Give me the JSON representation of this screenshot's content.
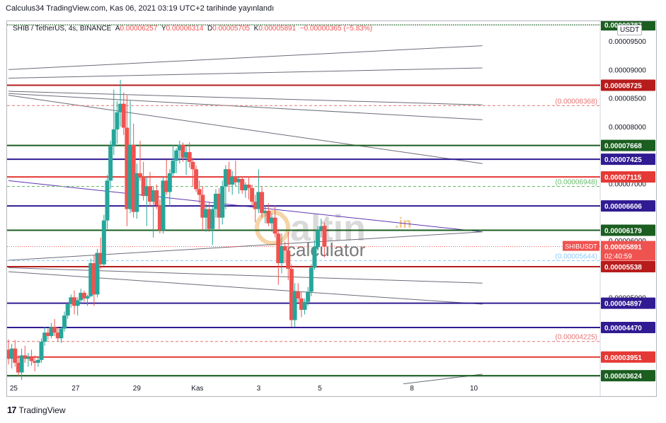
{
  "header": {
    "text": "Calculus34 TradingView.com, Kas 06, 2021 03:19 UTC+2 tarihinde yayınlandı"
  },
  "legend": {
    "symbol": "SHIB / TetherUS, 4s, BINANCE",
    "open_label": "A",
    "open": "0.00006257",
    "high_label": "Y",
    "high": "0.00006314",
    "low_label": "D",
    "low": "0.00005705",
    "close_label": "K",
    "close": "0.00005891",
    "change": "−0.00000365 (−5.83%)"
  },
  "currency_button": "USDT",
  "footer": {
    "brand": "TradingView"
  },
  "watermark": {
    "brand": "altin",
    "suffix": ".in",
    "word": "calculator"
  },
  "colors": {
    "up": "#26a69a",
    "down": "#ef5350",
    "green_line": "#1b5e20",
    "red_line": "#c62828",
    "purple_line": "#311b92",
    "grey_line": "#6a6d78"
  },
  "chart_data": {
    "type": "candlestick",
    "title": "SHIB / TetherUS, 4s, BINANCE",
    "y_axis": {
      "min": 3.6e-05,
      "max": 9.85e-05,
      "ticks": [
        "0.00009500",
        "0.00009000",
        "0.00008500",
        "0.00008000",
        "0.00007000",
        "0.00006000",
        "0.00005000"
      ]
    },
    "x_axis": {
      "ticks": [
        {
          "label": "25",
          "t": 0.8
        },
        {
          "label": "27",
          "t": 10.2
        },
        {
          "label": "29",
          "t": 19.5
        },
        {
          "label": "Kas",
          "t": 28.7
        },
        {
          "label": "3",
          "t": 38.0
        },
        {
          "label": "5",
          "t": 47.3
        },
        {
          "label": "8",
          "t": 61.3
        },
        {
          "label": "10",
          "t": 70.7
        }
      ]
    },
    "last_price": {
      "symbol": "SHIBUSDT",
      "value": "0.00005891",
      "countdown": "02:40:59"
    },
    "levels": [
      {
        "value": 9.787e-05,
        "label": "0.00009787",
        "style": "dotted-dark",
        "color": "#1b5e20",
        "box": "green"
      },
      {
        "value": 8.725e-05,
        "label": "0.00008725",
        "style": "solid",
        "color": "#b71c1c",
        "box": "darkred"
      },
      {
        "value": 8.368e-05,
        "label": "(0.00008368)",
        "style": "dashed",
        "color": "#e57373",
        "box": "none"
      },
      {
        "value": 7.668e-05,
        "label": "0.00007668",
        "style": "solid",
        "color": "#1b5e20",
        "box": "green"
      },
      {
        "value": 7.425e-05,
        "label": "0.00007425",
        "style": "solid",
        "color": "#311b92",
        "box": "purple"
      },
      {
        "value": 7.115e-05,
        "label": "0.00007115",
        "style": "solid",
        "color": "#e53935",
        "box": "red"
      },
      {
        "value": 6.948e-05,
        "label": "(0.00006948)",
        "style": "dashed",
        "color": "#66bb6a",
        "box": "none"
      },
      {
        "value": 6.606e-05,
        "label": "0.00006606",
        "style": "solid",
        "color": "#311b92",
        "box": "purple"
      },
      {
        "value": 6.179e-05,
        "label": "0.00006179",
        "style": "solid",
        "color": "#1b5e20",
        "box": "green"
      },
      {
        "value": 5.644e-05,
        "label": "(0.00005644)",
        "style": "dashed",
        "color": "#90caf9",
        "box": "none"
      },
      {
        "value": 5.538e-05,
        "label": "0.00005538",
        "style": "solid",
        "color": "#b71c1c",
        "box": "darkred"
      },
      {
        "value": 4.897e-05,
        "label": "0.00004897",
        "style": "solid",
        "color": "#311b92",
        "box": "purple"
      },
      {
        "value": 4.47e-05,
        "label": "0.00004470",
        "style": "solid",
        "color": "#311b92",
        "box": "purple"
      },
      {
        "value": 4.225e-05,
        "label": "(0.00004225)",
        "style": "dashed",
        "color": "#e57373",
        "box": "none"
      },
      {
        "value": 3.951e-05,
        "label": "0.00003951",
        "style": "solid",
        "color": "#e53935",
        "box": "red"
      },
      {
        "value": 3.624e-05,
        "label": "0.00003624",
        "style": "solid",
        "color": "#1b5e20",
        "box": "green"
      }
    ],
    "trendlines": [
      {
        "t1": 0,
        "v1": 9e-05,
        "t2": 72,
        "v2": 9.42e-05,
        "color": "#6a6d78"
      },
      {
        "t1": 0,
        "v1": 8.85e-05,
        "t2": 72,
        "v2": 9.03e-05,
        "color": "#6a6d78"
      },
      {
        "t1": 0,
        "v1": 8.62e-05,
        "t2": 72,
        "v2": 8.38e-05,
        "color": "#6a6d78"
      },
      {
        "t1": 0,
        "v1": 8.58e-05,
        "t2": 72,
        "v2": 8.12e-05,
        "color": "#6a6d78"
      },
      {
        "t1": 0,
        "v1": 8.55e-05,
        "t2": 72,
        "v2": 7.35e-05,
        "color": "#6a6d78"
      },
      {
        "t1": 0,
        "v1": 7.05e-05,
        "t2": 72,
        "v2": 6.15e-05,
        "color": "#5e35b1"
      },
      {
        "t1": 0,
        "v1": 5.65e-05,
        "t2": 72,
        "v2": 6.15e-05,
        "color": "#6a6d78"
      },
      {
        "t1": 0,
        "v1": 5.52e-05,
        "t2": 72,
        "v2": 5.25e-05,
        "color": "#6a6d78"
      },
      {
        "t1": 0,
        "v1": 5.45e-05,
        "t2": 72,
        "v2": 4.88e-05,
        "color": "#6a6d78"
      },
      {
        "t1": 60,
        "v1": 3.48e-05,
        "t2": 72,
        "v2": 3.65e-05,
        "color": "#6a6d78"
      }
    ],
    "candles": [
      [
        0.0,
        4.08e-05,
        4.26e-05,
        3.82e-05,
        3.92e-05
      ],
      [
        0.5,
        3.92e-05,
        4.18e-05,
        3.75e-05,
        4.1e-05
      ],
      [
        1.0,
        4.1e-05,
        4.25e-05,
        3.78e-05,
        3.85e-05
      ],
      [
        1.5,
        3.85e-05,
        3.98e-05,
        3.62e-05,
        3.68e-05
      ],
      [
        2.0,
        3.68e-05,
        4.1e-05,
        3.55e-05,
        3.98e-05
      ],
      [
        2.5,
        3.98e-05,
        4.15e-05,
        3.85e-05,
        3.92e-05
      ],
      [
        3.0,
        3.92e-05,
        4.02e-05,
        3.78e-05,
        3.95e-05
      ],
      [
        3.5,
        3.95e-05,
        4.08e-05,
        3.8e-05,
        3.88e-05
      ],
      [
        4.0,
        3.88e-05,
        3.98e-05,
        3.7e-05,
        3.85e-05
      ],
      [
        4.5,
        3.85e-05,
        3.95e-05,
        3.78e-05,
        3.9e-05
      ],
      [
        5.0,
        3.9e-05,
        4.28e-05,
        3.85e-05,
        4.22e-05
      ],
      [
        5.5,
        4.22e-05,
        4.48e-05,
        4.15e-05,
        4.38e-05
      ],
      [
        6.0,
        4.38e-05,
        4.45e-05,
        4.25e-05,
        4.32e-05
      ],
      [
        6.5,
        4.32e-05,
        4.55e-05,
        4.28e-05,
        4.48e-05
      ],
      [
        7.0,
        4.48e-05,
        4.62e-05,
        4.32e-05,
        4.38e-05
      ],
      [
        7.5,
        4.38e-05,
        4.48e-05,
        4.22e-05,
        4.28e-05
      ],
      [
        8.0,
        4.28e-05,
        4.48e-05,
        4.2e-05,
        4.45e-05
      ],
      [
        8.5,
        4.45e-05,
        4.75e-05,
        4.4e-05,
        4.68e-05
      ],
      [
        9.0,
        4.68e-05,
        4.92e-05,
        4.62e-05,
        4.88e-05
      ],
      [
        9.5,
        4.88e-05,
        5.05e-05,
        4.82e-05,
        5e-05
      ],
      [
        10.0,
        5e-05,
        5.12e-05,
        4.7e-05,
        4.85e-05
      ],
      [
        10.5,
        4.85e-05,
        5e-05,
        4.68e-05,
        4.95e-05
      ],
      [
        11.0,
        4.95e-05,
        5.15e-05,
        4.88e-05,
        5.08e-05
      ],
      [
        11.5,
        5.08e-05,
        5.12e-05,
        4.92e-05,
        4.98e-05
      ],
      [
        12.0,
        4.98e-05,
        5.05e-05,
        4.85e-05,
        5.02e-05
      ],
      [
        12.5,
        5.02e-05,
        5.68e-05,
        5e-05,
        5.6e-05
      ],
      [
        13.0,
        5.6e-05,
        5.75e-05,
        4.85e-05,
        5.05e-05
      ],
      [
        13.5,
        5.05e-05,
        5.85e-05,
        5e-05,
        5.78e-05
      ],
      [
        14.0,
        5.78e-05,
        6.05e-05,
        5.5e-05,
        5.58e-05
      ],
      [
        14.5,
        5.58e-05,
        6.45e-05,
        5.55e-05,
        6.35e-05
      ],
      [
        15.0,
        6.35e-05,
        7.15e-05,
        6.2e-05,
        7.05e-05
      ],
      [
        15.5,
        7.05e-05,
        7.75e-05,
        6.9e-05,
        7.65e-05
      ],
      [
        16.0,
        7.65e-05,
        8.65e-05,
        7.5e-05,
        7.95e-05
      ],
      [
        16.5,
        7.95e-05,
        8.45e-05,
        7.7e-05,
        8.25e-05
      ],
      [
        17.0,
        8.25e-05,
        8.82e-05,
        8e-05,
        8.4e-05
      ],
      [
        17.5,
        8.4e-05,
        8.6e-05,
        7.85e-05,
        7.98e-05
      ],
      [
        18.0,
        7.98e-05,
        8.55e-05,
        6.25e-05,
        6.55e-05
      ],
      [
        18.5,
        6.55e-05,
        8.45e-05,
        6.48e-05,
        7.68e-05
      ],
      [
        19.0,
        7.68e-05,
        8.05e-05,
        6.4e-05,
        6.5e-05
      ],
      [
        19.5,
        6.5e-05,
        7.35e-05,
        6.38e-05,
        7.18e-05
      ],
      [
        20.0,
        7.18e-05,
        7.75e-05,
        7.05e-05,
        7.12e-05
      ],
      [
        20.5,
        7.12e-05,
        7.38e-05,
        6.7e-05,
        6.78e-05
      ],
      [
        21.0,
        6.78e-05,
        7.12e-05,
        6.25e-05,
        6.95e-05
      ],
      [
        21.5,
        6.95e-05,
        7.2e-05,
        6.6e-05,
        6.68e-05
      ],
      [
        22.0,
        6.68e-05,
        6.95e-05,
        6.05e-05,
        6.88e-05
      ],
      [
        22.5,
        6.88e-05,
        6.98e-05,
        6.55e-05,
        6.62e-05
      ],
      [
        23.0,
        6.62e-05,
        6.72e-05,
        6.12e-05,
        6.18e-05
      ],
      [
        23.5,
        6.18e-05,
        7.12e-05,
        6.12e-05,
        7.05e-05
      ],
      [
        24.0,
        7.05e-05,
        7.42e-05,
        6.8e-05,
        6.85e-05
      ],
      [
        24.5,
        6.85e-05,
        7.25e-05,
        6.6e-05,
        7.18e-05
      ],
      [
        25.0,
        7.18e-05,
        7.68e-05,
        7.12e-05,
        7.4e-05
      ],
      [
        25.5,
        7.4e-05,
        7.62e-05,
        7.18e-05,
        7.58e-05
      ],
      [
        26.0,
        7.58e-05,
        7.75e-05,
        7.35e-05,
        7.68e-05
      ],
      [
        26.5,
        7.68e-05,
        7.72e-05,
        7.38e-05,
        7.45e-05
      ],
      [
        27.0,
        7.45e-05,
        7.65e-05,
        7.15e-05,
        7.55e-05
      ],
      [
        27.5,
        7.55e-05,
        7.72e-05,
        7.28e-05,
        7.38e-05
      ],
      [
        28.0,
        7.38e-05,
        7.45e-05,
        6.95e-05,
        7.25e-05
      ],
      [
        28.5,
        7.25e-05,
        7.32e-05,
        6.85e-05,
        6.9e-05
      ],
      [
        29.0,
        6.9e-05,
        7.05e-05,
        6.65e-05,
        6.8e-05
      ],
      [
        29.5,
        6.8e-05,
        6.95e-05,
        6.18e-05,
        6.4e-05
      ],
      [
        30.0,
        6.4e-05,
        6.65e-05,
        6.15e-05,
        6.55e-05
      ],
      [
        30.5,
        6.55e-05,
        6.68e-05,
        6.15e-05,
        6.2e-05
      ],
      [
        31.0,
        6.2e-05,
        6.6e-05,
        5.92e-05,
        6.55e-05
      ],
      [
        31.5,
        6.55e-05,
        6.9e-05,
        6.4e-05,
        6.82e-05
      ],
      [
        32.0,
        6.82e-05,
        6.92e-05,
        6.2e-05,
        6.4e-05
      ],
      [
        32.5,
        6.4e-05,
        7.05e-05,
        6.28e-05,
        6.95e-05
      ],
      [
        33.0,
        6.95e-05,
        7.32e-05,
        6.55e-05,
        7.25e-05
      ],
      [
        33.5,
        7.25e-05,
        7.38e-05,
        6.85e-05,
        6.98e-05
      ],
      [
        34.0,
        6.98e-05,
        7.22e-05,
        6.8e-05,
        7.12e-05
      ],
      [
        34.5,
        7.12e-05,
        7.4e-05,
        6.95e-05,
        7.02e-05
      ],
      [
        35.0,
        7.02e-05,
        7.12e-05,
        6.82e-05,
        7.08e-05
      ],
      [
        35.5,
        7.08e-05,
        7.12e-05,
        6.82e-05,
        6.88e-05
      ],
      [
        36.0,
        6.88e-05,
        7.02e-05,
        6.75e-05,
        6.98e-05
      ],
      [
        36.5,
        6.98e-05,
        7.12e-05,
        6.72e-05,
        6.92e-05
      ],
      [
        37.0,
        6.92e-05,
        6.98e-05,
        6.6e-05,
        6.68e-05
      ],
      [
        37.5,
        6.68e-05,
        6.8e-05,
        6.32e-05,
        6.55e-05
      ],
      [
        38.0,
        6.55e-05,
        7.25e-05,
        6.48e-05,
        6.85e-05
      ],
      [
        38.5,
        6.85e-05,
        6.95e-05,
        6.4e-05,
        6.48e-05
      ],
      [
        39.0,
        6.48e-05,
        6.62e-05,
        6.3e-05,
        6.52e-05
      ],
      [
        39.5,
        6.52e-05,
        6.65e-05,
        6.25e-05,
        6.3e-05
      ],
      [
        40.0,
        6.3e-05,
        6.48e-05,
        6.15e-05,
        6.4e-05
      ],
      [
        40.5,
        6.4e-05,
        6.62e-05,
        6.05e-05,
        6.12e-05
      ],
      [
        41.0,
        6.12e-05,
        6.2e-05,
        5.22e-05,
        5.6e-05
      ],
      [
        41.5,
        5.6e-05,
        6.12e-05,
        5.42e-05,
        5.9e-05
      ],
      [
        42.0,
        5.9e-05,
        5.98e-05,
        5.6e-05,
        5.82e-05
      ],
      [
        42.5,
        5.82e-05,
        6.15e-05,
        5.3e-05,
        5.5e-05
      ],
      [
        43.0,
        5.5e-05,
        5.58e-05,
        4.48e-05,
        4.6e-05
      ],
      [
        43.5,
        4.6e-05,
        5.25e-05,
        4.48e-05,
        5.1e-05
      ],
      [
        44.0,
        5.1e-05,
        5.25e-05,
        4.88e-05,
        4.98e-05
      ],
      [
        44.5,
        4.98e-05,
        5.1e-05,
        4.65e-05,
        4.78e-05
      ],
      [
        45.0,
        4.78e-05,
        4.98e-05,
        4.7e-05,
        4.92e-05
      ],
      [
        45.5,
        4.92e-05,
        5.18e-05,
        4.85e-05,
        5.1e-05
      ],
      [
        46.0,
        5.1e-05,
        5.58e-05,
        5.02e-05,
        5.52e-05
      ],
      [
        46.5,
        5.52e-05,
        6e-05,
        5.48e-05,
        5.88e-05
      ],
      [
        47.0,
        5.88e-05,
        6.25e-05,
        5.82e-05,
        6.18e-05
      ],
      [
        47.5,
        6.18e-05,
        6.38e-05,
        6.05e-05,
        6.25e-05
      ],
      [
        48.0,
        6.257e-05,
        6.314e-05,
        5.705e-05,
        5.891e-05
      ]
    ]
  }
}
